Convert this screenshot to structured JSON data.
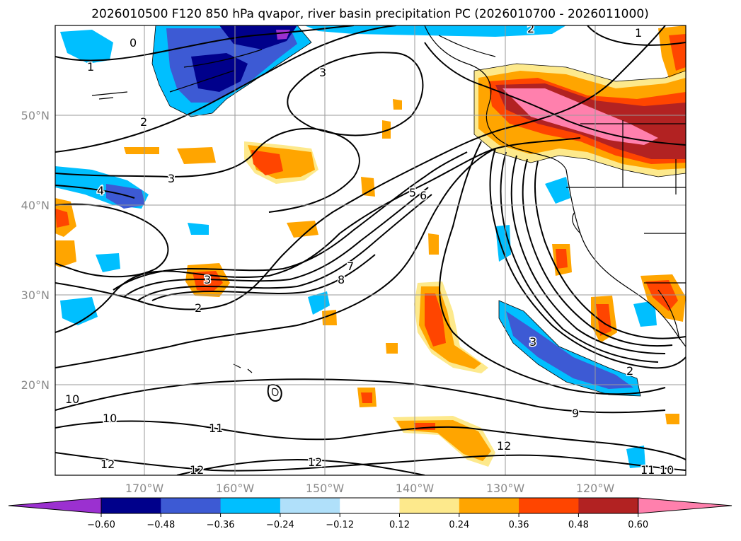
{
  "title": "2026010500 F120 850 hPa qvapor, river basin precipitation PC (2026010700 - 2026011000)",
  "map": {
    "lon_labels": [
      "170°W",
      "160°W",
      "150°W",
      "140°W",
      "130°W",
      "120°W"
    ],
    "lat_labels": [
      "50°N",
      "40°N",
      "30°N",
      "20°N"
    ],
    "contour_labels": [
      "0",
      "1",
      "2",
      "3",
      "4",
      "5",
      "6",
      "7",
      "8",
      "9",
      "10",
      "11",
      "12"
    ]
  },
  "colorbar": {
    "ticks": [
      "−0.60",
      "−0.48",
      "−0.36",
      "−0.24",
      "−0.12",
      "0.12",
      "0.24",
      "0.36",
      "0.48",
      "0.60"
    ],
    "colors": [
      "#9b30d0",
      "#00008b",
      "#3d5ad4",
      "#00bfff",
      "#b0e0fa",
      "#ffffff",
      "#fde98c",
      "#ffa500",
      "#ff4500",
      "#b22222",
      "#ff80ad"
    ]
  }
}
